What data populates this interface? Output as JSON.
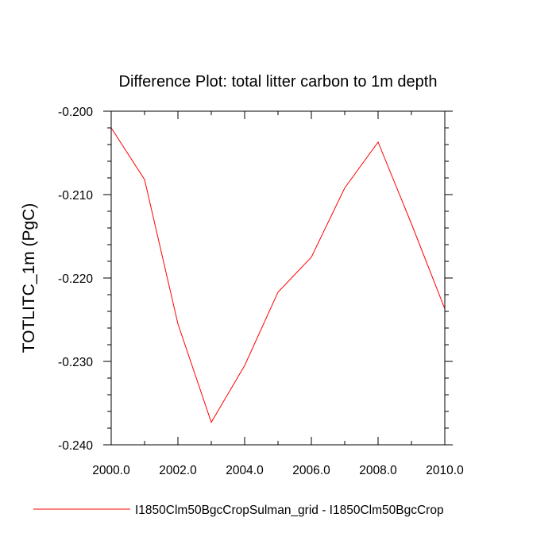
{
  "chart_data": {
    "type": "line",
    "title": "Difference Plot: total litter carbon to 1m depth",
    "xlabel": "",
    "ylabel": "TOTLITC_1m  (PgC)",
    "xlim": [
      2000,
      2010
    ],
    "ylim": [
      -0.24,
      -0.2
    ],
    "x_ticks": [
      2000,
      2002,
      2004,
      2006,
      2008,
      2010
    ],
    "x_tick_labels": [
      "2000.0",
      "2002.0",
      "2004.0",
      "2006.0",
      "2008.0",
      "2010.0"
    ],
    "y_ticks": [
      -0.2,
      -0.21,
      -0.22,
      -0.23,
      -0.24
    ],
    "y_tick_labels": [
      "-0.200",
      "-0.210",
      "-0.220",
      "-0.230",
      "-0.240"
    ],
    "grid": false,
    "legend_position": "bottom",
    "series": [
      {
        "name": "I1850Clm50BgcCropSulman_grid - I1850Clm50BgcCrop",
        "color": "#ff0000",
        "x": [
          2000,
          2001,
          2002,
          2003,
          2004,
          2005,
          2006,
          2007,
          2008,
          2009,
          2010
        ],
        "values": [
          -0.202,
          -0.2082,
          -0.2255,
          -0.2373,
          -0.2305,
          -0.2217,
          -0.2175,
          -0.2092,
          -0.2037,
          -0.2135,
          -0.2237
        ]
      }
    ]
  }
}
